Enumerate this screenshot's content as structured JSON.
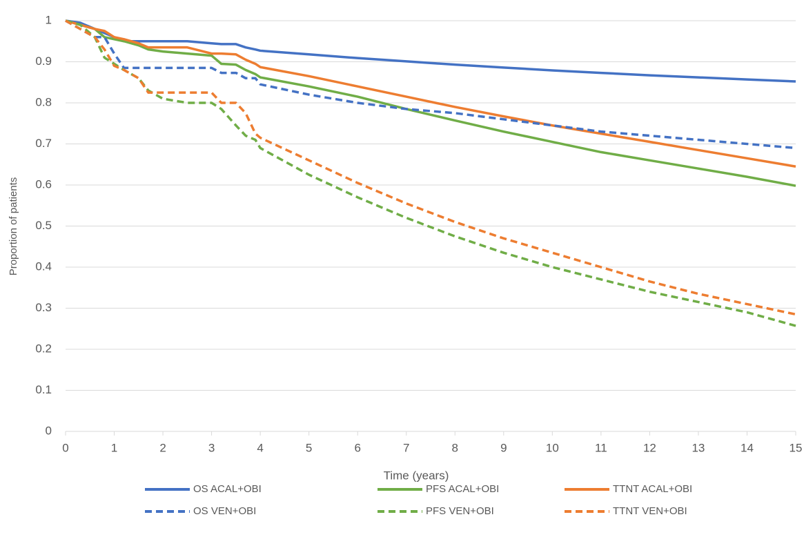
{
  "chart_data": {
    "type": "line",
    "x_label": "Time (years)",
    "y_label": "Proportion of patients",
    "x": [
      0,
      0.3,
      0.6,
      0.8,
      1,
      1.2,
      1.5,
      1.7,
      2,
      2.5,
      3,
      3.2,
      3.5,
      3.7,
      3.9,
      4,
      5,
      6,
      7,
      8,
      9,
      10,
      11,
      12,
      13,
      14,
      15
    ],
    "series": [
      {
        "name": "OS ACAL+OBI",
        "color": "#4472c4",
        "dashed": false,
        "values": [
          1,
          0.995,
          0.98,
          0.97,
          0.96,
          0.95,
          0.95,
          0.95,
          0.95,
          0.95,
          0.945,
          0.943,
          0.943,
          0.935,
          0.93,
          0.927,
          0.918,
          0.909,
          0.901,
          0.893,
          0.886,
          0.879,
          0.873,
          0.867,
          0.862,
          0.857,
          0.852
        ]
      },
      {
        "name": "PFS ACAL+OBI",
        "color": "#70ad47",
        "dashed": false,
        "values": [
          1,
          0.99,
          0.98,
          0.96,
          0.955,
          0.95,
          0.94,
          0.93,
          0.925,
          0.92,
          0.915,
          0.895,
          0.893,
          0.88,
          0.87,
          0.862,
          0.84,
          0.815,
          0.785,
          0.757,
          0.73,
          0.705,
          0.68,
          0.66,
          0.64,
          0.62,
          0.598
        ]
      },
      {
        "name": "TTNT ACAL+OBI",
        "color": "#ed7d31",
        "dashed": false,
        "values": [
          1,
          0.99,
          0.98,
          0.975,
          0.96,
          0.955,
          0.945,
          0.935,
          0.935,
          0.935,
          0.92,
          0.92,
          0.918,
          0.905,
          0.895,
          0.887,
          0.865,
          0.84,
          0.815,
          0.79,
          0.767,
          0.745,
          0.725,
          0.705,
          0.685,
          0.665,
          0.645
        ]
      },
      {
        "name": "OS VEN+OBI",
        "color": "#4472c4",
        "dashed": true,
        "values": [
          1,
          0.98,
          0.96,
          0.96,
          0.92,
          0.885,
          0.885,
          0.885,
          0.885,
          0.885,
          0.885,
          0.873,
          0.873,
          0.86,
          0.86,
          0.845,
          0.82,
          0.8,
          0.785,
          0.775,
          0.76,
          0.745,
          0.73,
          0.72,
          0.71,
          0.7,
          0.69
        ]
      },
      {
        "name": "PFS VEN+OBI",
        "color": "#70ad47",
        "dashed": true,
        "values": [
          1,
          0.99,
          0.96,
          0.91,
          0.895,
          0.88,
          0.86,
          0.83,
          0.81,
          0.8,
          0.8,
          0.785,
          0.745,
          0.72,
          0.71,
          0.69,
          0.625,
          0.57,
          0.52,
          0.475,
          0.435,
          0.4,
          0.37,
          0.34,
          0.315,
          0.29,
          0.257
        ]
      },
      {
        "name": "TTNT VEN+OBI",
        "color": "#ed7d31",
        "dashed": true,
        "values": [
          1,
          0.98,
          0.96,
          0.93,
          0.89,
          0.88,
          0.86,
          0.825,
          0.825,
          0.825,
          0.825,
          0.8,
          0.8,
          0.775,
          0.725,
          0.715,
          0.66,
          0.605,
          0.555,
          0.51,
          0.47,
          0.435,
          0.4,
          0.365,
          0.335,
          0.31,
          0.285
        ]
      }
    ],
    "xlim": [
      0,
      15
    ],
    "xticks": [
      0,
      1,
      2,
      3,
      4,
      5,
      6,
      7,
      8,
      9,
      10,
      11,
      12,
      13,
      14,
      15
    ],
    "ylim": [
      0,
      1
    ],
    "yticks": [
      0,
      0.1,
      0.2,
      0.3,
      0.4,
      0.5,
      0.6,
      0.7,
      0.8,
      0.9,
      1
    ],
    "grid": true,
    "legend": "bottom"
  }
}
